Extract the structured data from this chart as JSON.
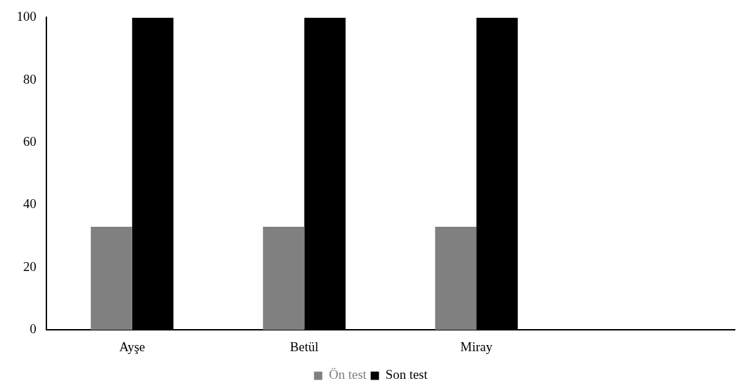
{
  "chart_data": {
    "type": "bar",
    "categories": [
      "Ayşe",
      "Betül",
      "Miray",
      null
    ],
    "series": [
      {
        "name": "Ön test",
        "color": "#808080",
        "values": [
          33,
          33,
          33,
          null
        ]
      },
      {
        "name": "Son test",
        "color": "#000000",
        "values": [
          100,
          100,
          100,
          null
        ]
      }
    ],
    "ylim": [
      0,
      100
    ],
    "yticks": [
      0,
      20,
      40,
      60,
      80,
      100
    ],
    "grid": false,
    "legend": "bottom"
  }
}
